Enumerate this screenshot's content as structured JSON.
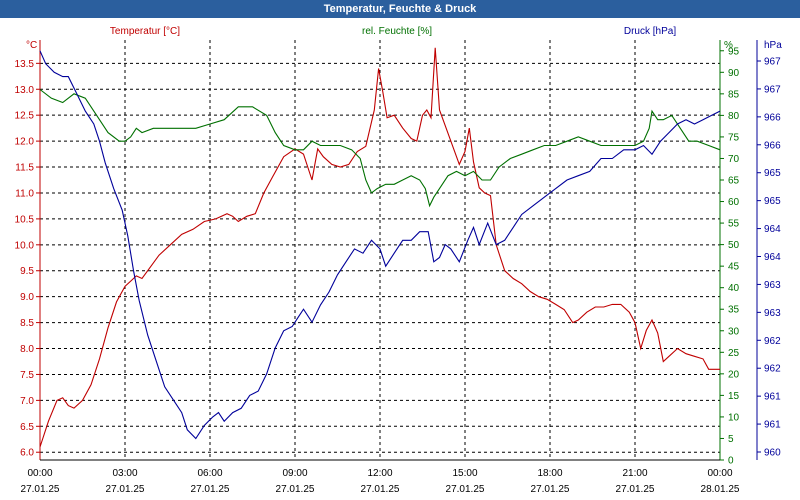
{
  "window": {
    "title": "Temperatur, Feuchte & Druck"
  },
  "chart_data": {
    "type": "line",
    "title": "Temperatur, Feuchte & Druck",
    "grid": true,
    "colors": {
      "temp": "#c00000",
      "hum": "#007000",
      "press": "#00009a",
      "grid": "#000000",
      "axis": "#000000"
    },
    "x": {
      "range_hours": [
        0,
        24
      ],
      "ticks": [
        {
          "h": 0,
          "time": "00:00",
          "date": "27.01.25"
        },
        {
          "h": 3,
          "time": "03:00",
          "date": "27.01.25"
        },
        {
          "h": 6,
          "time": "06:00",
          "date": "27.01.25"
        },
        {
          "h": 9,
          "time": "09:00",
          "date": "27.01.25"
        },
        {
          "h": 12,
          "time": "12:00",
          "date": "27.01.25"
        },
        {
          "h": 15,
          "time": "15:00",
          "date": "27.01.25"
        },
        {
          "h": 18,
          "time": "18:00",
          "date": "27.01.25"
        },
        {
          "h": 21,
          "time": "21:00",
          "date": "27.01.25"
        },
        {
          "h": 24,
          "time": "00:00",
          "date": "28.01.25"
        }
      ]
    },
    "axes": {
      "temp": {
        "unit": "°C",
        "min": 5.85,
        "max": 13.95,
        "ticks": [
          "13.5",
          "13.0",
          "12.5",
          "12.0",
          "11.5",
          "11.0",
          "10.5",
          "10.0",
          "9.5",
          "9.0",
          "8.5",
          "8.0",
          "7.5",
          "7.0",
          "6.5",
          "6.0"
        ]
      },
      "hum": {
        "unit": "%",
        "min": 0,
        "max": 97.5,
        "ticks": [
          "95",
          "90",
          "85",
          "80",
          "75",
          "70",
          "65",
          "60",
          "55",
          "50",
          "45",
          "40",
          "35",
          "30",
          "25",
          "20",
          "15",
          "10",
          "5",
          "0"
        ]
      },
      "press": {
        "unit": "hPa",
        "ticks": [
          "967",
          "967",
          "966",
          "966",
          "965",
          "965",
          "964",
          "964",
          "963",
          "963",
          "962",
          "962",
          "961",
          "961",
          "960"
        ]
      }
    },
    "series": [
      {
        "name": "Temperatur [°C]",
        "key": "temp",
        "points": [
          [
            0,
            6.1
          ],
          [
            0.3,
            6.6
          ],
          [
            0.6,
            7.0
          ],
          [
            0.8,
            7.05
          ],
          [
            1.0,
            6.9
          ],
          [
            1.2,
            6.85
          ],
          [
            1.5,
            7.0
          ],
          [
            1.8,
            7.3
          ],
          [
            2.1,
            7.8
          ],
          [
            2.4,
            8.4
          ],
          [
            2.7,
            8.9
          ],
          [
            3.0,
            9.2
          ],
          [
            3.2,
            9.3
          ],
          [
            3.4,
            9.4
          ],
          [
            3.6,
            9.35
          ],
          [
            3.8,
            9.5
          ],
          [
            4.2,
            9.8
          ],
          [
            4.6,
            10.0
          ],
          [
            5.0,
            10.2
          ],
          [
            5.4,
            10.3
          ],
          [
            5.8,
            10.45
          ],
          [
            6.2,
            10.5
          ],
          [
            6.6,
            10.6
          ],
          [
            6.8,
            10.55
          ],
          [
            7.0,
            10.45
          ],
          [
            7.3,
            10.55
          ],
          [
            7.6,
            10.6
          ],
          [
            7.9,
            11.0
          ],
          [
            8.2,
            11.3
          ],
          [
            8.6,
            11.7
          ],
          [
            9.0,
            11.85
          ],
          [
            9.3,
            11.75
          ],
          [
            9.6,
            11.25
          ],
          [
            9.8,
            11.85
          ],
          [
            10.0,
            11.7
          ],
          [
            10.3,
            11.55
          ],
          [
            10.6,
            11.5
          ],
          [
            10.9,
            11.55
          ],
          [
            11.2,
            11.8
          ],
          [
            11.5,
            11.9
          ],
          [
            11.8,
            12.6
          ],
          [
            11.95,
            13.4
          ],
          [
            12.1,
            12.95
          ],
          [
            12.25,
            12.45
          ],
          [
            12.5,
            12.5
          ],
          [
            12.8,
            12.25
          ],
          [
            13.1,
            12.05
          ],
          [
            13.3,
            12.0
          ],
          [
            13.5,
            12.5
          ],
          [
            13.65,
            12.6
          ],
          [
            13.8,
            12.45
          ],
          [
            13.95,
            13.8
          ],
          [
            14.1,
            12.6
          ],
          [
            14.3,
            12.3
          ],
          [
            14.6,
            11.85
          ],
          [
            14.8,
            11.55
          ],
          [
            15.0,
            11.8
          ],
          [
            15.15,
            12.25
          ],
          [
            15.3,
            11.6
          ],
          [
            15.5,
            11.1
          ],
          [
            15.7,
            11.0
          ],
          [
            15.9,
            10.95
          ],
          [
            16.1,
            10.0
          ],
          [
            16.4,
            9.5
          ],
          [
            16.7,
            9.35
          ],
          [
            17.0,
            9.25
          ],
          [
            17.3,
            9.1
          ],
          [
            17.6,
            9.0
          ],
          [
            17.9,
            8.95
          ],
          [
            18.2,
            8.85
          ],
          [
            18.5,
            8.75
          ],
          [
            18.8,
            8.5
          ],
          [
            19.0,
            8.55
          ],
          [
            19.3,
            8.7
          ],
          [
            19.6,
            8.8
          ],
          [
            19.9,
            8.8
          ],
          [
            20.2,
            8.85
          ],
          [
            20.5,
            8.85
          ],
          [
            20.8,
            8.7
          ],
          [
            21.0,
            8.5
          ],
          [
            21.2,
            8.0
          ],
          [
            21.4,
            8.35
          ],
          [
            21.6,
            8.55
          ],
          [
            21.8,
            8.3
          ],
          [
            22.0,
            7.75
          ],
          [
            22.2,
            7.85
          ],
          [
            22.5,
            8.0
          ],
          [
            22.8,
            7.9
          ],
          [
            23.1,
            7.85
          ],
          [
            23.4,
            7.8
          ],
          [
            23.6,
            7.6
          ],
          [
            23.8,
            7.6
          ],
          [
            24.0,
            7.6
          ]
        ]
      },
      {
        "name": "rel. Feuchte [%]",
        "key": "hum",
        "points": [
          [
            0,
            86
          ],
          [
            0.4,
            84
          ],
          [
            0.8,
            83
          ],
          [
            1.2,
            85
          ],
          [
            1.6,
            84
          ],
          [
            2.0,
            80
          ],
          [
            2.4,
            76
          ],
          [
            2.8,
            74
          ],
          [
            3.0,
            74
          ],
          [
            3.2,
            75
          ],
          [
            3.4,
            77
          ],
          [
            3.6,
            76
          ],
          [
            4.0,
            77
          ],
          [
            4.5,
            77
          ],
          [
            5.0,
            77
          ],
          [
            5.5,
            77
          ],
          [
            6.0,
            78
          ],
          [
            6.5,
            79
          ],
          [
            7.0,
            82
          ],
          [
            7.5,
            82
          ],
          [
            8.0,
            80
          ],
          [
            8.3,
            76
          ],
          [
            8.6,
            73
          ],
          [
            9.0,
            72
          ],
          [
            9.3,
            72
          ],
          [
            9.6,
            74
          ],
          [
            9.9,
            73
          ],
          [
            10.2,
            73
          ],
          [
            10.6,
            73
          ],
          [
            11.0,
            72
          ],
          [
            11.3,
            70
          ],
          [
            11.5,
            65
          ],
          [
            11.7,
            62
          ],
          [
            11.9,
            63
          ],
          [
            12.2,
            64
          ],
          [
            12.5,
            64
          ],
          [
            12.8,
            65
          ],
          [
            13.1,
            66
          ],
          [
            13.4,
            65
          ],
          [
            13.6,
            63
          ],
          [
            13.75,
            59
          ],
          [
            13.9,
            61
          ],
          [
            14.1,
            63
          ],
          [
            14.4,
            66
          ],
          [
            14.7,
            67
          ],
          [
            15.0,
            66
          ],
          [
            15.3,
            67
          ],
          [
            15.6,
            65
          ],
          [
            15.9,
            65
          ],
          [
            16.2,
            68
          ],
          [
            16.6,
            70
          ],
          [
            17.0,
            71
          ],
          [
            17.4,
            72
          ],
          [
            17.8,
            73
          ],
          [
            18.2,
            73
          ],
          [
            18.6,
            74
          ],
          [
            19.0,
            75
          ],
          [
            19.4,
            74
          ],
          [
            19.8,
            73
          ],
          [
            20.2,
            73
          ],
          [
            20.6,
            73
          ],
          [
            21.0,
            73
          ],
          [
            21.3,
            74
          ],
          [
            21.5,
            77
          ],
          [
            21.6,
            81
          ],
          [
            21.8,
            79
          ],
          [
            22.0,
            79
          ],
          [
            22.3,
            80
          ],
          [
            22.6,
            77
          ],
          [
            22.9,
            74
          ],
          [
            23.2,
            74
          ],
          [
            23.6,
            73
          ],
          [
            24.0,
            72
          ]
        ]
      },
      {
        "name": "Druck [hPa]",
        "key": "press",
        "points": [
          [
            0,
            95
          ],
          [
            0.2,
            92
          ],
          [
            0.5,
            90
          ],
          [
            0.8,
            89
          ],
          [
            1.0,
            89
          ],
          [
            1.3,
            85
          ],
          [
            1.6,
            81
          ],
          [
            1.9,
            78
          ],
          [
            2.1,
            74
          ],
          [
            2.3,
            69
          ],
          [
            2.6,
            63
          ],
          [
            2.9,
            58
          ],
          [
            3.1,
            52
          ],
          [
            3.3,
            44
          ],
          [
            3.5,
            37
          ],
          [
            3.8,
            29
          ],
          [
            4.1,
            23
          ],
          [
            4.4,
            17
          ],
          [
            4.7,
            14
          ],
          [
            5.0,
            11
          ],
          [
            5.2,
            7
          ],
          [
            5.5,
            5
          ],
          [
            5.8,
            8
          ],
          [
            6.1,
            10
          ],
          [
            6.3,
            11
          ],
          [
            6.5,
            9
          ],
          [
            6.8,
            11
          ],
          [
            7.1,
            12
          ],
          [
            7.4,
            15
          ],
          [
            7.7,
            16
          ],
          [
            8.0,
            20
          ],
          [
            8.3,
            26
          ],
          [
            8.6,
            30
          ],
          [
            8.9,
            31
          ],
          [
            9.1,
            33
          ],
          [
            9.3,
            35
          ],
          [
            9.6,
            32
          ],
          [
            9.9,
            36
          ],
          [
            10.2,
            39
          ],
          [
            10.5,
            43
          ],
          [
            10.8,
            46
          ],
          [
            11.1,
            49
          ],
          [
            11.4,
            48
          ],
          [
            11.7,
            51
          ],
          [
            12.0,
            49
          ],
          [
            12.2,
            45
          ],
          [
            12.5,
            48
          ],
          [
            12.8,
            51
          ],
          [
            13.1,
            51
          ],
          [
            13.4,
            53
          ],
          [
            13.7,
            53
          ],
          [
            13.9,
            46
          ],
          [
            14.1,
            47
          ],
          [
            14.3,
            50
          ],
          [
            14.5,
            49
          ],
          [
            14.8,
            46
          ],
          [
            15.1,
            51
          ],
          [
            15.3,
            54
          ],
          [
            15.5,
            50
          ],
          [
            15.8,
            55
          ],
          [
            16.1,
            50
          ],
          [
            16.4,
            51
          ],
          [
            16.7,
            54
          ],
          [
            17.0,
            57
          ],
          [
            17.4,
            59
          ],
          [
            17.8,
            61
          ],
          [
            18.2,
            63
          ],
          [
            18.6,
            65
          ],
          [
            19.0,
            66
          ],
          [
            19.4,
            67
          ],
          [
            19.8,
            70
          ],
          [
            20.2,
            70
          ],
          [
            20.6,
            72
          ],
          [
            21.0,
            72
          ],
          [
            21.3,
            73
          ],
          [
            21.6,
            71
          ],
          [
            21.9,
            74
          ],
          [
            22.2,
            76
          ],
          [
            22.5,
            78
          ],
          [
            22.8,
            79
          ],
          [
            23.1,
            78
          ],
          [
            23.4,
            79
          ],
          [
            23.7,
            80
          ],
          [
            24.0,
            81
          ]
        ]
      }
    ]
  }
}
